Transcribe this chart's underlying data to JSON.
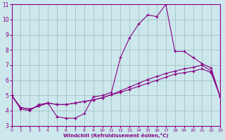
{
  "xlabel": "Windchill (Refroidissement éolien,°C)",
  "xlim": [
    0,
    23
  ],
  "ylim": [
    3,
    11
  ],
  "xticks": [
    0,
    1,
    2,
    3,
    4,
    5,
    6,
    7,
    8,
    9,
    10,
    11,
    12,
    13,
    14,
    15,
    16,
    17,
    18,
    19,
    20,
    21,
    22,
    23
  ],
  "yticks": [
    3,
    4,
    5,
    6,
    7,
    8,
    9,
    10,
    11
  ],
  "background_color": "#cce8ec",
  "line_color": "#880088",
  "grid_color": "#99bbbb",
  "series1_y": [
    5.0,
    4.1,
    4.0,
    4.4,
    4.5,
    3.6,
    3.5,
    3.5,
    3.8,
    4.9,
    5.0,
    5.2,
    7.5,
    8.8,
    9.7,
    10.3,
    10.2,
    11.0,
    7.9,
    7.9,
    7.5,
    7.1,
    6.8,
    4.9
  ],
  "series2_y": [
    5.0,
    4.2,
    4.1,
    4.3,
    4.5,
    4.4,
    4.4,
    4.5,
    4.6,
    4.7,
    4.85,
    5.05,
    5.3,
    5.55,
    5.8,
    6.05,
    6.25,
    6.45,
    6.6,
    6.75,
    6.85,
    7.0,
    6.6,
    4.9
  ],
  "series3_y": [
    5.0,
    4.2,
    4.1,
    4.3,
    4.5,
    4.4,
    4.4,
    4.5,
    4.6,
    4.7,
    4.85,
    5.05,
    5.2,
    5.4,
    5.6,
    5.8,
    6.0,
    6.2,
    6.4,
    6.5,
    6.6,
    6.75,
    6.5,
    4.9
  ]
}
